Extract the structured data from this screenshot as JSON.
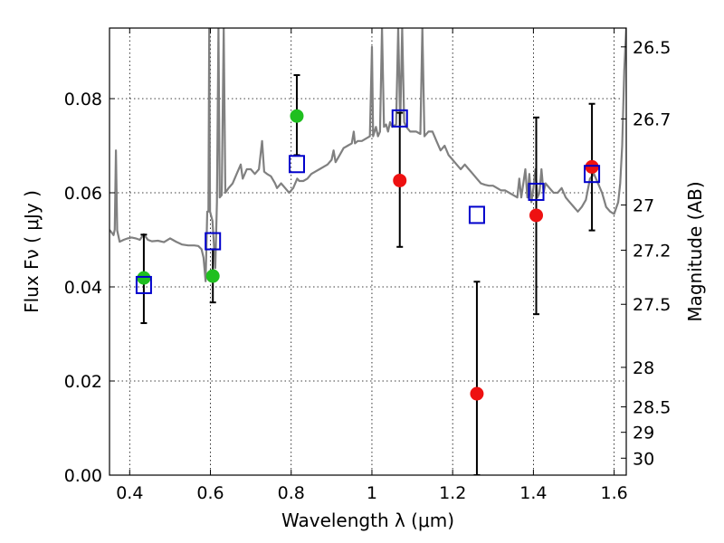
{
  "chart_data": {
    "type": "scatter",
    "xlabel": "Wavelength  λ (μm)",
    "ylabel": "Flux  Fν  ( μJy )",
    "ylabel_right": "Magnitude (AB)",
    "xlim": [
      0.35,
      1.63
    ],
    "ylim": [
      0.0,
      0.095
    ],
    "grid": true,
    "x_ticks": [
      0.4,
      0.6,
      0.8,
      1.0,
      1.2,
      1.4,
      1.6
    ],
    "x_tick_labels": [
      "0.4",
      "0.6",
      "0.8",
      "1",
      "1.2",
      "1.4",
      "1.6"
    ],
    "y_ticks": [
      0.0,
      0.02,
      0.04,
      0.06,
      0.08
    ],
    "y_tick_labels": [
      "0.00",
      "0.02",
      "0.04",
      "0.06",
      "0.08"
    ],
    "right_ticks": [
      {
        "label": "26.5",
        "flux": 0.091
      },
      {
        "label": "26.7",
        "flux": 0.0757
      },
      {
        "label": "27",
        "flux": 0.0574
      },
      {
        "label": "27.2",
        "flux": 0.0478
      },
      {
        "label": "27.5",
        "flux": 0.0363
      },
      {
        "label": "28",
        "flux": 0.0229
      },
      {
        "label": "28.5",
        "flux": 0.0145
      },
      {
        "label": "29",
        "flux": 0.0091
      },
      {
        "label": "30",
        "flux": 0.0036
      }
    ],
    "colors": {
      "model": "#808080",
      "green": "#1fbf1f",
      "red": "#ee1111",
      "box": "#0000cc",
      "errorbar": "#000000"
    },
    "model_spectrum": [
      [
        0.35,
        0.0521
      ],
      [
        0.355,
        0.0516
      ],
      [
        0.36,
        0.051
      ],
      [
        0.363,
        0.0522
      ],
      [
        0.366,
        0.069
      ],
      [
        0.369,
        0.052
      ],
      [
        0.375,
        0.0496
      ],
      [
        0.385,
        0.05
      ],
      [
        0.395,
        0.0503
      ],
      [
        0.405,
        0.0505
      ],
      [
        0.415,
        0.0503
      ],
      [
        0.425,
        0.05
      ],
      [
        0.435,
        0.0512
      ],
      [
        0.445,
        0.05
      ],
      [
        0.455,
        0.0497
      ],
      [
        0.47,
        0.0498
      ],
      [
        0.485,
        0.0495
      ],
      [
        0.5,
        0.0503
      ],
      [
        0.515,
        0.0496
      ],
      [
        0.53,
        0.049
      ],
      [
        0.545,
        0.0488
      ],
      [
        0.56,
        0.0488
      ],
      [
        0.57,
        0.0487
      ],
      [
        0.578,
        0.048
      ],
      [
        0.583,
        0.0462
      ],
      [
        0.588,
        0.0412
      ],
      [
        0.592,
        0.056
      ],
      [
        0.595,
        0.056
      ],
      [
        0.597,
        0.095
      ],
      [
        0.599,
        0.056
      ],
      [
        0.605,
        0.054
      ],
      [
        0.612,
        0.044
      ],
      [
        0.616,
        0.058
      ],
      [
        0.62,
        0.095
      ],
      [
        0.623,
        0.059
      ],
      [
        0.628,
        0.0595
      ],
      [
        0.633,
        0.095
      ],
      [
        0.637,
        0.06
      ],
      [
        0.645,
        0.061
      ],
      [
        0.655,
        0.062
      ],
      [
        0.665,
        0.064
      ],
      [
        0.675,
        0.066
      ],
      [
        0.68,
        0.063
      ],
      [
        0.69,
        0.065
      ],
      [
        0.7,
        0.065
      ],
      [
        0.71,
        0.064
      ],
      [
        0.72,
        0.065
      ],
      [
        0.728,
        0.071
      ],
      [
        0.733,
        0.0645
      ],
      [
        0.74,
        0.064
      ],
      [
        0.75,
        0.0635
      ],
      [
        0.76,
        0.062
      ],
      [
        0.765,
        0.061
      ],
      [
        0.775,
        0.062
      ],
      [
        0.785,
        0.061
      ],
      [
        0.795,
        0.06
      ],
      [
        0.805,
        0.061
      ],
      [
        0.815,
        0.063
      ],
      [
        0.82,
        0.0625
      ],
      [
        0.83,
        0.0625
      ],
      [
        0.84,
        0.063
      ],
      [
        0.85,
        0.064
      ],
      [
        0.86,
        0.0645
      ],
      [
        0.87,
        0.065
      ],
      [
        0.88,
        0.0655
      ],
      [
        0.89,
        0.066
      ],
      [
        0.9,
        0.067
      ],
      [
        0.905,
        0.069
      ],
      [
        0.91,
        0.0665
      ],
      [
        0.92,
        0.068
      ],
      [
        0.93,
        0.0695
      ],
      [
        0.94,
        0.07
      ],
      [
        0.95,
        0.0705
      ],
      [
        0.955,
        0.073
      ],
      [
        0.958,
        0.0705
      ],
      [
        0.965,
        0.071
      ],
      [
        0.975,
        0.071
      ],
      [
        0.985,
        0.0715
      ],
      [
        0.995,
        0.072
      ],
      [
        1.0,
        0.091
      ],
      [
        1.003,
        0.072
      ],
      [
        1.01,
        0.074
      ],
      [
        1.015,
        0.072
      ],
      [
        1.02,
        0.073
      ],
      [
        1.025,
        0.095
      ],
      [
        1.03,
        0.074
      ],
      [
        1.035,
        0.0745
      ],
      [
        1.04,
        0.073
      ],
      [
        1.045,
        0.075
      ],
      [
        1.05,
        0.074
      ],
      [
        1.06,
        0.0745
      ],
      [
        1.065,
        0.095
      ],
      [
        1.07,
        0.0745
      ],
      [
        1.075,
        0.095
      ],
      [
        1.08,
        0.075
      ],
      [
        1.085,
        0.074
      ],
      [
        1.09,
        0.0735
      ],
      [
        1.095,
        0.073
      ],
      [
        1.1,
        0.073
      ],
      [
        1.11,
        0.073
      ],
      [
        1.12,
        0.0725
      ],
      [
        1.125,
        0.095
      ],
      [
        1.13,
        0.072
      ],
      [
        1.14,
        0.073
      ],
      [
        1.15,
        0.073
      ],
      [
        1.16,
        0.071
      ],
      [
        1.17,
        0.069
      ],
      [
        1.18,
        0.07
      ],
      [
        1.19,
        0.068
      ],
      [
        1.2,
        0.067
      ],
      [
        1.21,
        0.066
      ],
      [
        1.22,
        0.065
      ],
      [
        1.23,
        0.066
      ],
      [
        1.24,
        0.065
      ],
      [
        1.25,
        0.064
      ],
      [
        1.26,
        0.063
      ],
      [
        1.27,
        0.062
      ],
      [
        1.28,
        0.0617
      ],
      [
        1.29,
        0.0615
      ],
      [
        1.3,
        0.0615
      ],
      [
        1.31,
        0.061
      ],
      [
        1.32,
        0.0605
      ],
      [
        1.33,
        0.0605
      ],
      [
        1.34,
        0.06
      ],
      [
        1.35,
        0.0595
      ],
      [
        1.36,
        0.059
      ],
      [
        1.365,
        0.063
      ],
      [
        1.37,
        0.059
      ],
      [
        1.38,
        0.065
      ],
      [
        1.385,
        0.059
      ],
      [
        1.39,
        0.064
      ],
      [
        1.395,
        0.058
      ],
      [
        1.4,
        0.061
      ],
      [
        1.405,
        0.065
      ],
      [
        1.41,
        0.059
      ],
      [
        1.415,
        0.06
      ],
      [
        1.42,
        0.065
      ],
      [
        1.425,
        0.06
      ],
      [
        1.43,
        0.062
      ],
      [
        1.44,
        0.061
      ],
      [
        1.45,
        0.06
      ],
      [
        1.46,
        0.06
      ],
      [
        1.47,
        0.061
      ],
      [
        1.48,
        0.059
      ],
      [
        1.49,
        0.058
      ],
      [
        1.5,
        0.057
      ],
      [
        1.51,
        0.056
      ],
      [
        1.52,
        0.057
      ],
      [
        1.53,
        0.0585
      ],
      [
        1.54,
        0.063
      ],
      [
        1.55,
        0.064
      ],
      [
        1.56,
        0.062
      ],
      [
        1.57,
        0.06
      ],
      [
        1.575,
        0.0585
      ],
      [
        1.58,
        0.057
      ],
      [
        1.59,
        0.056
      ],
      [
        1.6,
        0.0555
      ],
      [
        1.61,
        0.058
      ],
      [
        1.615,
        0.062
      ],
      [
        1.62,
        0.07
      ],
      [
        1.625,
        0.086
      ],
      [
        1.63,
        0.095
      ]
    ],
    "observed_points": [
      {
        "x": 0.435,
        "y": 0.0419,
        "yerr_low": 0.0323,
        "yerr_high": 0.0511,
        "color": "green"
      },
      {
        "x": 0.606,
        "y": 0.0423,
        "yerr_low": 0.0367,
        "yerr_high": 0.048,
        "color": "green"
      },
      {
        "x": 0.814,
        "y": 0.0763,
        "yerr_low": 0.068,
        "yerr_high": 0.085,
        "color": "green"
      },
      {
        "x": 1.069,
        "y": 0.0626,
        "yerr_low": 0.0485,
        "yerr_high": 0.077,
        "color": "red"
      },
      {
        "x": 1.26,
        "y": 0.0173,
        "yerr_low": 0.0,
        "yerr_high": 0.0411,
        "color": "red"
      },
      {
        "x": 1.407,
        "y": 0.0552,
        "yerr_low": 0.0342,
        "yerr_high": 0.076,
        "color": "red"
      },
      {
        "x": 1.545,
        "y": 0.0655,
        "yerr_low": 0.052,
        "yerr_high": 0.0789,
        "color": "red"
      }
    ],
    "model_points": [
      {
        "x": 0.435,
        "y": 0.0404
      },
      {
        "x": 0.606,
        "y": 0.0497
      },
      {
        "x": 0.814,
        "y": 0.0661
      },
      {
        "x": 1.069,
        "y": 0.0758
      },
      {
        "x": 1.26,
        "y": 0.0553
      },
      {
        "x": 1.407,
        "y": 0.0602
      },
      {
        "x": 1.545,
        "y": 0.064
      }
    ]
  }
}
